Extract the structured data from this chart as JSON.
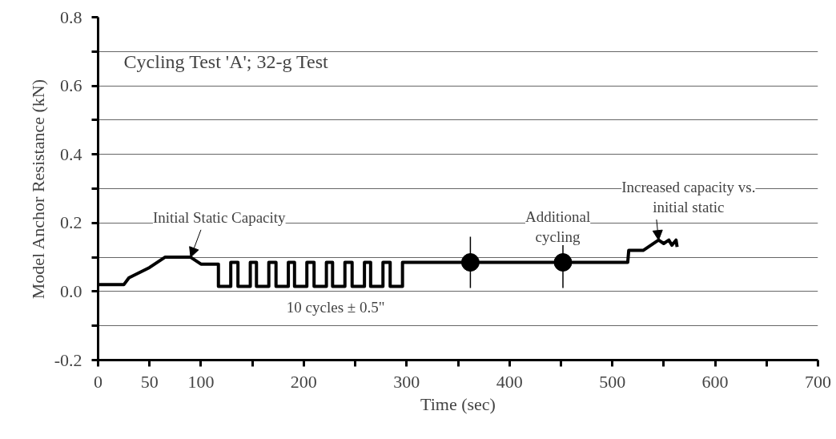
{
  "chart_data": {
    "type": "line",
    "xlabel": "Time (sec)",
    "ylabel": "Model Anchor Resistance (kN)",
    "xlim": [
      0,
      700
    ],
    "ylim": [
      -0.2,
      0.8
    ],
    "xticks": [
      0,
      50,
      100,
      {
        "value": 150,
        "label": null
      },
      200,
      {
        "value": 250,
        "label": null
      },
      300,
      {
        "value": 350,
        "label": null
      },
      400,
      {
        "value": 450,
        "label": null
      },
      500,
      {
        "value": 550,
        "label": null
      },
      600,
      {
        "value": 650,
        "label": null
      },
      700
    ],
    "yticks": [
      {
        "value": -0.2,
        "label": "-0.2"
      },
      {
        "value": -0.1,
        "label": null
      },
      {
        "value": 0,
        "label": "0.0"
      },
      {
        "value": 0.1,
        "label": null
      },
      {
        "value": 0.2,
        "label": "0.2"
      },
      {
        "value": 0.3,
        "label": null
      },
      {
        "value": 0.4,
        "label": "0.4"
      },
      {
        "value": 0.5,
        "label": null
      },
      {
        "value": 0.6,
        "label": "0.6"
      },
      {
        "value": 0.7,
        "label": null
      },
      {
        "value": 0.8,
        "label": "0.8"
      }
    ],
    "grid": "y",
    "line_style": "solid",
    "marker": "none",
    "series": [
      {
        "color": "#000000",
        "x": [
          0,
          25,
          30,
          50,
          65,
          90,
          100,
          110,
          117,
          117,
          129,
          129,
          136,
          136,
          148,
          148,
          154,
          154,
          166,
          166,
          173,
          173,
          185,
          185,
          191,
          191,
          203,
          203,
          210,
          210,
          222,
          222,
          228,
          228,
          240,
          240,
          247,
          247,
          259,
          259,
          265,
          265,
          277,
          277,
          284,
          284,
          296,
          296,
          515,
          516,
          530,
          545,
          550,
          555,
          558,
          562,
          563
        ],
        "values": [
          0.02,
          0.02,
          0.04,
          0.07,
          0.1,
          0.1,
          0.08,
          0.08,
          0.08,
          0.015,
          0.015,
          0.085,
          0.085,
          0.015,
          0.015,
          0.085,
          0.085,
          0.015,
          0.015,
          0.085,
          0.085,
          0.015,
          0.015,
          0.085,
          0.085,
          0.015,
          0.015,
          0.085,
          0.085,
          0.015,
          0.015,
          0.085,
          0.085,
          0.015,
          0.015,
          0.085,
          0.085,
          0.015,
          0.015,
          0.085,
          0.085,
          0.015,
          0.015,
          0.085,
          0.085,
          0.015,
          0.015,
          0.085,
          0.085,
          0.12,
          0.12,
          0.15,
          0.14,
          0.15,
          0.135,
          0.15,
          0.13
        ]
      },
      {
        "color": "#000000",
        "type": "scatter",
        "marker": "circle",
        "x": [
          362,
          452
        ],
        "values": [
          0.085,
          0.085
        ],
        "errors": [
          0.075,
          0.075
        ]
      }
    ],
    "annotations": [
      "Cycling Test 'A'; 32-g Test",
      "10 cycles ± 0.5\"",
      "Additional cycling",
      {
        "text": "Initial Static Capacity",
        "x": 90,
        "y": 0.1
      },
      {
        "text": "Increased capacity vs. initial static",
        "x": 545,
        "y": 0.15
      }
    ]
  }
}
